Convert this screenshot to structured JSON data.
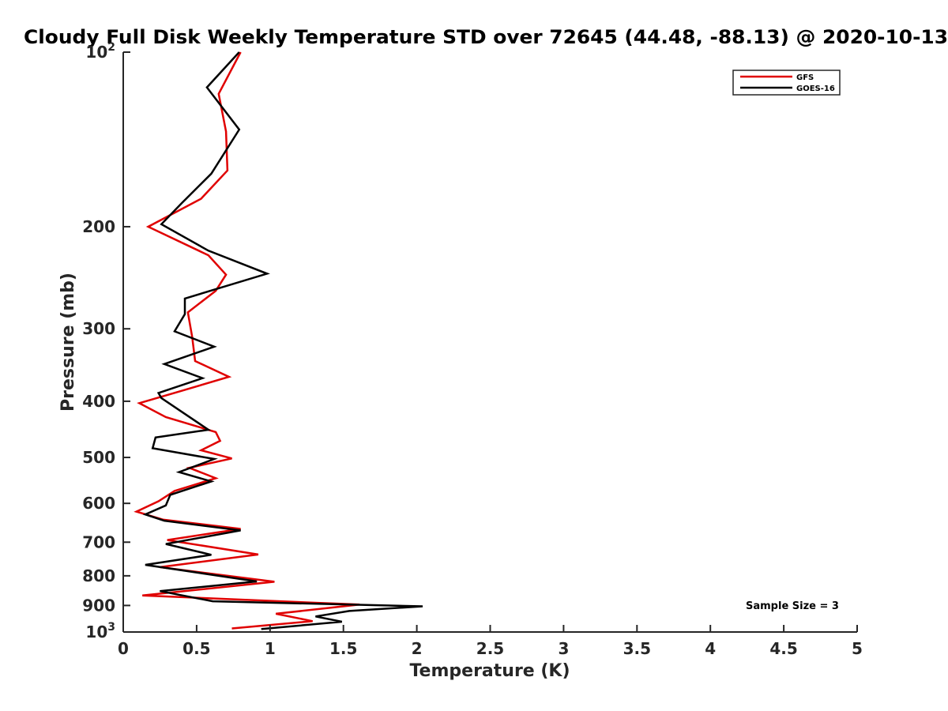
{
  "chart_data": {
    "type": "line",
    "title": "Cloudy Full Disk Weekly Temperature STD over 72645 (44.48, -88.13) @ 2020-10-13",
    "xlabel": "Temperature (K)",
    "ylabel": "Pressure (mb)",
    "xlim": [
      0,
      5
    ],
    "ylim": [
      1000,
      100
    ],
    "yscale": "log",
    "y_reversed": true,
    "grid": false,
    "legend_position": "top-right",
    "annotation": "Sample Size = 3",
    "x_ticks": [
      {
        "value": 0,
        "label": "0"
      },
      {
        "value": 0.5,
        "label": "0.5"
      },
      {
        "value": 1,
        "label": "1"
      },
      {
        "value": 1.5,
        "label": "1.5"
      },
      {
        "value": 2,
        "label": "2"
      },
      {
        "value": 2.5,
        "label": "2.5"
      },
      {
        "value": 3,
        "label": "3"
      },
      {
        "value": 3.5,
        "label": "3.5"
      },
      {
        "value": 4,
        "label": "4"
      },
      {
        "value": 4.5,
        "label": "4.5"
      },
      {
        "value": 5,
        "label": "5"
      }
    ],
    "y_ticks": [
      {
        "value": 100,
        "base": "10",
        "exp": "2"
      },
      {
        "value": 200,
        "label": "200"
      },
      {
        "value": 300,
        "label": "300"
      },
      {
        "value": 400,
        "label": "400"
      },
      {
        "value": 500,
        "label": "500"
      },
      {
        "value": 600,
        "label": "600"
      },
      {
        "value": 700,
        "label": "700"
      },
      {
        "value": 800,
        "label": "800"
      },
      {
        "value": 900,
        "label": "900"
      },
      {
        "value": 1000,
        "base": "10",
        "exp": "3"
      }
    ],
    "series": [
      {
        "name": "GFS",
        "color": "#e00000",
        "points": [
          [
            0.8,
            100
          ],
          [
            0.65,
            118
          ],
          [
            0.7,
            137
          ],
          [
            0.71,
            160
          ],
          [
            0.53,
            179
          ],
          [
            0.17,
            200
          ],
          [
            0.58,
            224
          ],
          [
            0.7,
            242
          ],
          [
            0.63,
            258
          ],
          [
            0.44,
            281
          ],
          [
            0.47,
            310
          ],
          [
            0.49,
            341
          ],
          [
            0.72,
            363
          ],
          [
            0.38,
            385
          ],
          [
            0.11,
            403
          ],
          [
            0.29,
            426
          ],
          [
            0.63,
            452
          ],
          [
            0.66,
            468
          ],
          [
            0.53,
            486
          ],
          [
            0.74,
            502
          ],
          [
            0.45,
            521
          ],
          [
            0.63,
            543
          ],
          [
            0.35,
            571
          ],
          [
            0.24,
            595
          ],
          [
            0.09,
            620
          ],
          [
            0.27,
            640
          ],
          [
            0.8,
            664
          ],
          [
            0.3,
            694
          ],
          [
            0.92,
            735
          ],
          [
            0.25,
            773
          ],
          [
            1.03,
            819
          ],
          [
            0.13,
            865
          ],
          [
            1.61,
            897
          ],
          [
            1.04,
            930
          ],
          [
            1.29,
            958
          ],
          [
            0.74,
            986
          ]
        ]
      },
      {
        "name": "GOES-16",
        "color": "#000000",
        "points": [
          [
            0.79,
            100
          ],
          [
            0.57,
            115
          ],
          [
            0.79,
            136
          ],
          [
            0.6,
            162
          ],
          [
            0.4,
            182
          ],
          [
            0.26,
            198
          ],
          [
            0.58,
            220
          ],
          [
            0.98,
            241
          ],
          [
            0.42,
            266
          ],
          [
            0.42,
            283
          ],
          [
            0.35,
            303
          ],
          [
            0.62,
            322
          ],
          [
            0.28,
            345
          ],
          [
            0.54,
            365
          ],
          [
            0.24,
            387
          ],
          [
            0.26,
            395
          ],
          [
            0.58,
            448
          ],
          [
            0.22,
            462
          ],
          [
            0.2,
            482
          ],
          [
            0.62,
            503
          ],
          [
            0.38,
            530
          ],
          [
            0.6,
            550
          ],
          [
            0.32,
            580
          ],
          [
            0.29,
            605
          ],
          [
            0.15,
            627
          ],
          [
            0.28,
            643
          ],
          [
            0.8,
            668
          ],
          [
            0.29,
            705
          ],
          [
            0.6,
            736
          ],
          [
            0.15,
            766
          ],
          [
            0.91,
            818
          ],
          [
            0.25,
            850
          ],
          [
            0.61,
            885
          ],
          [
            2.04,
            903
          ],
          [
            1.54,
            920
          ],
          [
            1.31,
            940
          ],
          [
            1.49,
            960
          ],
          [
            0.94,
            988
          ]
        ]
      }
    ]
  }
}
